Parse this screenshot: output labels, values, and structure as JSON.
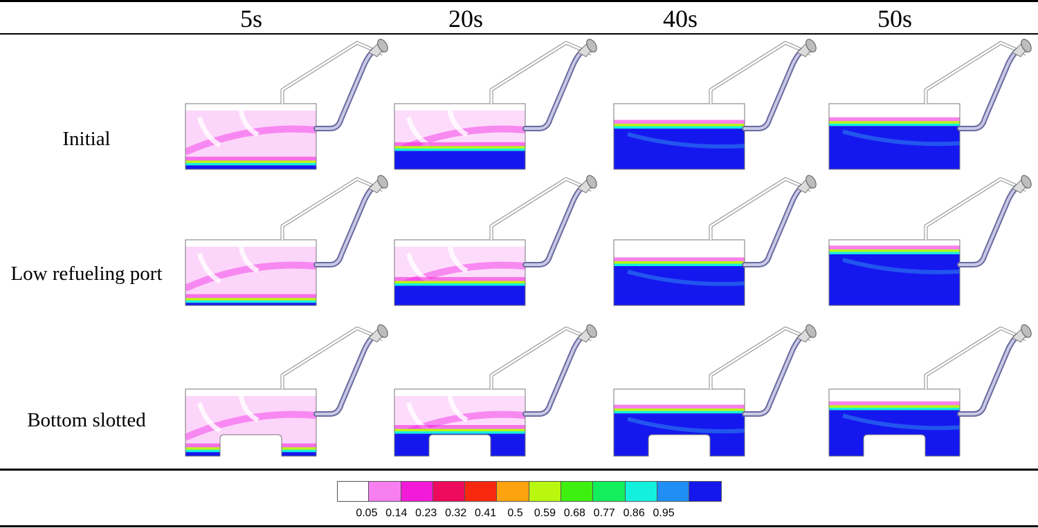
{
  "columns": [
    "5s",
    "20s",
    "40s",
    "50s"
  ],
  "rows": [
    {
      "label": "Initial",
      "levels": [
        0.06,
        0.28,
        0.62,
        0.66
      ],
      "tank": "flat"
    },
    {
      "label": "Low refueling port",
      "levels": [
        0.04,
        0.3,
        0.6,
        0.78
      ],
      "tank": "flat"
    },
    {
      "label": "Bottom slotted",
      "levels": [
        0.04,
        0.32,
        0.63,
        0.68
      ],
      "tank": "slotted"
    }
  ],
  "legend": {
    "values": [
      "0.05",
      "0.14",
      "0.23",
      "0.32",
      "0.41",
      "0.5",
      "0.59",
      "0.68",
      "0.77",
      "0.86",
      "0.95"
    ],
    "colors": [
      "#ffffff",
      "#f77ff0",
      "#f21bd8",
      "#ee0a5c",
      "#f8280e",
      "#fca30f",
      "#b9f70f",
      "#3ef010",
      "#12ee5c",
      "#13f1dc",
      "#1f8ef5",
      "#1418ef"
    ]
  }
}
